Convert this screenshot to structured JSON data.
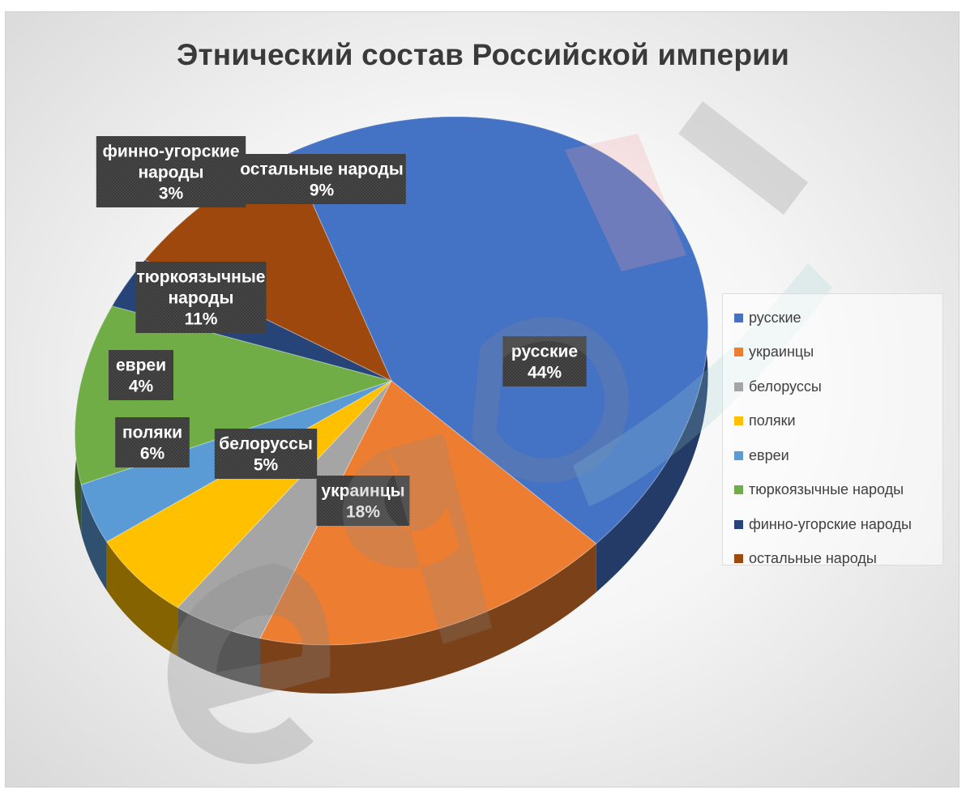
{
  "chart_data": {
    "type": "pie",
    "title": "Этнический состав Российской империи",
    "categories": [
      "русские",
      "украинцы",
      "белоруссы",
      "поляки",
      "евреи",
      "тюркоязычные народы",
      "финно-угорские народы",
      "остальные народы"
    ],
    "values": [
      44,
      18,
      5,
      6,
      4,
      11,
      3,
      9
    ],
    "value_labels": [
      "44%",
      "18%",
      "5%",
      "6%",
      "4%",
      "11%",
      "3%",
      "9%"
    ],
    "colors": [
      "#4472C4",
      "#ED7D31",
      "#A5A5A5",
      "#FFC000",
      "#5B9BD5",
      "#70AD47",
      "#264478",
      "#9E480E"
    ],
    "slice_labels": [
      [
        "русские",
        "44%"
      ],
      [
        "украинцы",
        "18%"
      ],
      [
        "белоруссы",
        "5%"
      ],
      [
        "поляки",
        "6%"
      ],
      [
        "евреи",
        "4%"
      ],
      [
        "тюркоязычные",
        "народы",
        "11%"
      ],
      [
        "финно-угорские",
        "народы",
        "3%"
      ],
      [
        "остальные народы",
        "9%"
      ]
    ],
    "legend": [
      "русские",
      "украинцы",
      "белоруссы",
      "поляки",
      "евреи",
      "тюркоязычные народы",
      "финно-угорские народы",
      "остальные народы"
    ],
    "legend_position": "right",
    "style": "3d-pie"
  },
  "watermark": {
    "text": "edu",
    "color": "#8a8a8a"
  }
}
